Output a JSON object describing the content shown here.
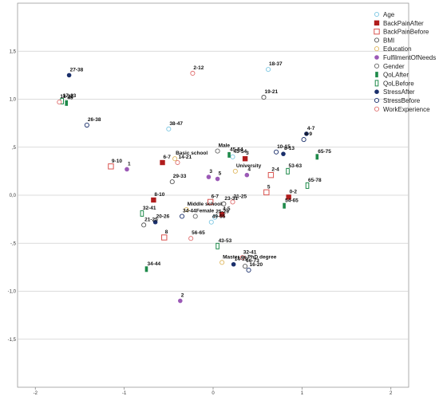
{
  "chart_data": {
    "type": "scatter",
    "title": "",
    "xlabel": "",
    "ylabel": "",
    "xlim": [
      -2.2,
      2.2
    ],
    "ylim": [
      -2.0,
      2.0
    ],
    "xticks": [
      -2,
      -1,
      0,
      1,
      2
    ],
    "yticks": [
      1.5,
      1.0,
      0.5,
      0.0,
      -0.5,
      -1.0,
      -1.5
    ],
    "ytick_labels": [
      "1,5",
      "1,0",
      ",5",
      "0,0",
      "-,5",
      "-1,0",
      "-1,5"
    ],
    "grid": "horizontal",
    "legend_position": "top-right",
    "series": [
      {
        "name": "Age",
        "marker": "circle-open",
        "color": "#7ec8e3",
        "points": [
          {
            "label": "18-37",
            "x": 0.62,
            "y": 1.31
          },
          {
            "label": "38-47",
            "x": -0.5,
            "y": 0.69
          },
          {
            "label": "45-54",
            "x": 0.22,
            "y": 0.4
          },
          {
            "label": "25-29",
            "x": 0.02,
            "y": -0.23
          },
          {
            "label": "49-55",
            "x": -0.02,
            "y": -0.28
          }
        ]
      },
      {
        "name": "BackPainAfter",
        "marker": "square-filled",
        "color": "#b01c1c",
        "points": [
          {
            "label": "6-7",
            "x": -0.57,
            "y": 0.34
          },
          {
            "label": "3",
            "x": 0.36,
            "y": 0.38
          },
          {
            "label": "0-2",
            "x": 0.85,
            "y": -0.02
          },
          {
            "label": "8-10",
            "x": -0.67,
            "y": -0.05
          },
          {
            "label": "4-5",
            "x": 0.1,
            "y": -0.2
          }
        ]
      },
      {
        "name": "BackPainBefore",
        "marker": "square-open",
        "color": "#d9534f",
        "points": [
          {
            "label": "9-10",
            "x": -1.15,
            "y": 0.3
          },
          {
            "label": "2-4",
            "x": 0.65,
            "y": 0.21
          },
          {
            "label": "5",
            "x": 0.6,
            "y": 0.03
          },
          {
            "label": "6-7",
            "x": -0.03,
            "y": -0.07
          },
          {
            "label": "8",
            "x": -0.55,
            "y": -0.44
          }
        ]
      },
      {
        "name": "BMI",
        "marker": "circle-open",
        "color": "#555555",
        "points": [
          {
            "label": "19-21",
            "x": 0.57,
            "y": 1.02
          },
          {
            "label": "29-33",
            "x": -0.46,
            "y": 0.14
          },
          {
            "label": "23-31",
            "x": 0.12,
            "y": -0.09
          },
          {
            "label": "21-25",
            "x": -0.78,
            "y": -0.31
          },
          {
            "label": "66-73",
            "x": 0.36,
            "y": -0.74
          }
        ]
      },
      {
        "name": "Education",
        "marker": "circle-open",
        "color": "#e0b860",
        "points": [
          {
            "label": "Basic school",
            "x": -0.43,
            "y": 0.38
          },
          {
            "label": "University",
            "x": 0.25,
            "y": 0.25
          },
          {
            "label": "Middle school",
            "x": -0.3,
            "y": -0.15
          },
          {
            "label": "Master or PhD degree",
            "x": 0.1,
            "y": -0.7
          }
        ]
      },
      {
        "name": "FulfilmentOfNeeds",
        "marker": "circle-filled",
        "color": "#9b59b6",
        "points": [
          {
            "label": "1",
            "x": -0.97,
            "y": 0.27
          },
          {
            "label": "3",
            "x": -0.05,
            "y": 0.19
          },
          {
            "label": "5",
            "x": 0.05,
            "y": 0.17
          },
          {
            "label": "4",
            "x": 0.38,
            "y": 0.21
          },
          {
            "label": "2",
            "x": -0.37,
            "y": -1.1
          }
        ]
      },
      {
        "name": "Gender",
        "marker": "circle-open",
        "color": "#666666",
        "points": [
          {
            "label": "Male",
            "x": 0.05,
            "y": 0.46
          },
          {
            "label": "Female",
            "x": -0.2,
            "y": -0.22
          }
        ]
      },
      {
        "name": "QoLAfter",
        "marker": "bar-filled",
        "color": "#1e8a4a",
        "points": [
          {
            "label": "45",
            "x": -1.65,
            "y": 0.96
          },
          {
            "label": "45-54",
            "x": 0.18,
            "y": 0.42
          },
          {
            "label": "65-75",
            "x": 1.17,
            "y": 0.4
          },
          {
            "label": "54-65",
            "x": 0.8,
            "y": -0.11
          },
          {
            "label": "34-44",
            "x": -0.75,
            "y": -0.77
          }
        ]
      },
      {
        "name": "QoLBefore",
        "marker": "bar-open",
        "color": "#1e8a4a",
        "points": [
          {
            "label": "17-33",
            "x": -1.7,
            "y": 0.98
          },
          {
            "label": "53-63",
            "x": 0.84,
            "y": 0.25
          },
          {
            "label": "65-78",
            "x": 1.06,
            "y": 0.1
          },
          {
            "label": "32-41",
            "x": -0.8,
            "y": -0.19
          },
          {
            "label": "43-53",
            "x": 0.05,
            "y": -0.53
          }
        ]
      },
      {
        "name": "StressAfter",
        "marker": "circle-filled",
        "color": "#1a2f6b",
        "points": [
          {
            "label": "27-38",
            "x": -1.62,
            "y": 1.25
          },
          {
            "label": "4-7",
            "x": 1.05,
            "y": 0.64
          },
          {
            "label": "8-13",
            "x": 0.79,
            "y": 0.43
          },
          {
            "label": "20-26",
            "x": -0.65,
            "y": -0.28
          },
          {
            "label": "14-19",
            "x": 0.23,
            "y": -0.72
          }
        ]
      },
      {
        "name": "StressBefore",
        "marker": "circle-open",
        "color": "#1a2f6b",
        "points": [
          {
            "label": "26-38",
            "x": -1.42,
            "y": 0.73
          },
          {
            "label": "10-15",
            "x": 0.71,
            "y": 0.45
          },
          {
            "label": "4-9",
            "x": 1.02,
            "y": 0.58
          },
          {
            "label": "34-44",
            "x": -0.35,
            "y": -0.22
          },
          {
            "label": "16-20",
            "x": 0.4,
            "y": -0.78
          }
        ]
      },
      {
        "name": "WorkExperience",
        "marker": "circle-open",
        "color": "#e07070",
        "points": [
          {
            "label": "2-12",
            "x": -0.23,
            "y": 1.27
          },
          {
            "label": "18-32",
            "x": -1.73,
            "y": 0.97
          },
          {
            "label": "14-21",
            "x": -0.4,
            "y": 0.34
          },
          {
            "label": "21-25",
            "x": 0.22,
            "y": -0.07
          },
          {
            "label": "56-65",
            "x": -0.25,
            "y": -0.45
          },
          {
            "label": "32-41",
            "x": 0.33,
            "y": -0.65
          }
        ]
      }
    ]
  }
}
